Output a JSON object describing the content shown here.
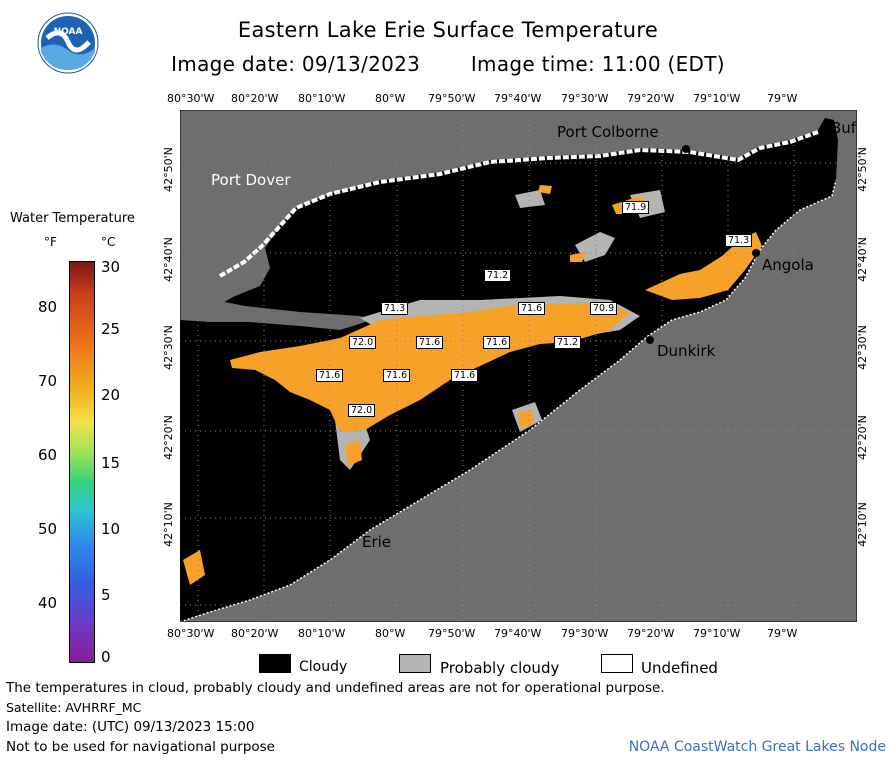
{
  "title": "Eastern Lake Erie Surface Temperature",
  "image_date_label": "Image date: 09/13/2023",
  "image_time_label": "Image time: 11:00 (EDT)",
  "logo_text": "NOAA",
  "legend": {
    "title": "Water Temperature",
    "unit_f": "°F",
    "unit_c": "°C",
    "f_ticks": [
      "80",
      "70",
      "60",
      "50",
      "40"
    ],
    "c_ticks": [
      "30",
      "25",
      "20",
      "15",
      "10",
      "5",
      "0"
    ]
  },
  "lon_labels": [
    "80°30'W",
    "80°20'W",
    "80°10'W",
    "80°W",
    "79°50'W",
    "79°40'W",
    "79°30'W",
    "79°20'W",
    "79°10'W",
    "79°W"
  ],
  "lat_labels": [
    "42°50'N",
    "42°40'N",
    "42°30'N",
    "42°20'N",
    "42°10'N"
  ],
  "places": {
    "port_colborne": "Port Colborne",
    "port_dover": "Port Dover",
    "buf": "Buf",
    "angola": "Angola",
    "dunkirk": "Dunkirk",
    "erie": "Erie"
  },
  "temp_labels": {
    "t1": "71.9",
    "t2": "71.3",
    "t3": "71.2",
    "t4": "71.3",
    "t5": "71.6",
    "t6": "70.9",
    "t7": "72.0",
    "t8": "71.6",
    "t9": "71.6",
    "t10": "71.2",
    "t11": "71.6",
    "t12": "71.6",
    "t13": "71.6",
    "t14": "72.0"
  },
  "key": {
    "cloudy": "Cloudy",
    "probably_cloudy": "Probably cloudy",
    "undefined": "Undefined"
  },
  "footer": {
    "disclaimer": "The temperatures in cloud, probably cloudy and undefined areas are not for operational purpose.",
    "satellite": "Satellite: AVHRRF_MC",
    "utc": "Image date: (UTC) 09/13/2023  15:00",
    "navigation": "Not to be used for navigational purpose",
    "credit": "NOAA CoastWatch Great Lakes Node"
  },
  "colors": {
    "land": "#6e6e6e",
    "cloud": "#000000",
    "probably_cloudy": "#b4b4b4",
    "undefined": "#ffffff",
    "water_temp": "#f7a128",
    "credit": "#3a6fc4"
  }
}
